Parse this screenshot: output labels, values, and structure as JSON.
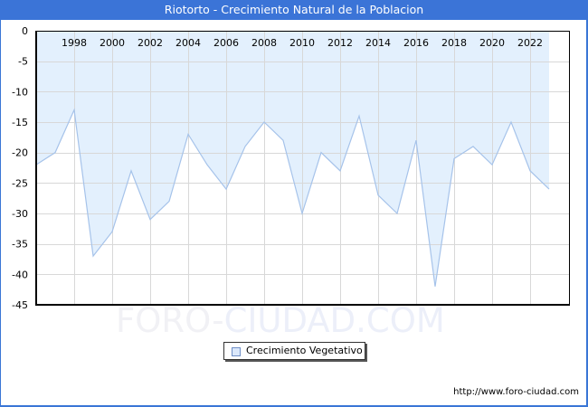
{
  "header": {
    "title": "Riotorto - Crecimiento Natural de la Poblacion"
  },
  "legend": {
    "label": "Crecimiento Vegetativo"
  },
  "footer": {
    "url": "http://www.foro-ciudad.com"
  },
  "watermark": {
    "part1": "FORO-",
    "part2": "CIUDAD.COM"
  },
  "colors": {
    "title_bar": "#3b74d7",
    "area_fill": "#e3f0fd",
    "line": "#a6c3ea",
    "grid": "#d8d8d8",
    "frame": "#3a76d6"
  },
  "chart_data": {
    "type": "area",
    "title": "Riotorto - Crecimiento Natural de la Poblacion",
    "xlabel": "",
    "ylabel": "",
    "x": [
      1996,
      1997,
      1998,
      1999,
      2000,
      2001,
      2002,
      2003,
      2004,
      2005,
      2006,
      2007,
      2008,
      2009,
      2010,
      2011,
      2012,
      2013,
      2014,
      2015,
      2016,
      2017,
      2018,
      2019,
      2020,
      2021,
      2022,
      2023
    ],
    "series": [
      {
        "name": "Crecimiento Vegetativo",
        "values": [
          -22,
          -20,
          -13,
          -37,
          -33,
          -23,
          -31,
          -28,
          -17,
          -22,
          -26,
          -19,
          -15,
          -18,
          -30,
          -20,
          -23,
          -14,
          -27,
          -30,
          -18,
          -42,
          -21,
          -19,
          -22,
          -15,
          -23,
          -26
        ]
      }
    ],
    "x_ticks": [
      "1998",
      "2000",
      "2002",
      "2004",
      "2006",
      "2008",
      "2010",
      "2012",
      "2014",
      "2016",
      "2018",
      "2020",
      "2022"
    ],
    "y_ticks": [
      "0",
      "-5",
      "-10",
      "-15",
      "-20",
      "-25",
      "-30",
      "-35",
      "-40",
      "-45"
    ],
    "ylim": [
      -45,
      0
    ],
    "xlim": [
      1996,
      2024
    ],
    "grid": true,
    "x_axis_position": "top",
    "legend_position": "bottom-center"
  }
}
